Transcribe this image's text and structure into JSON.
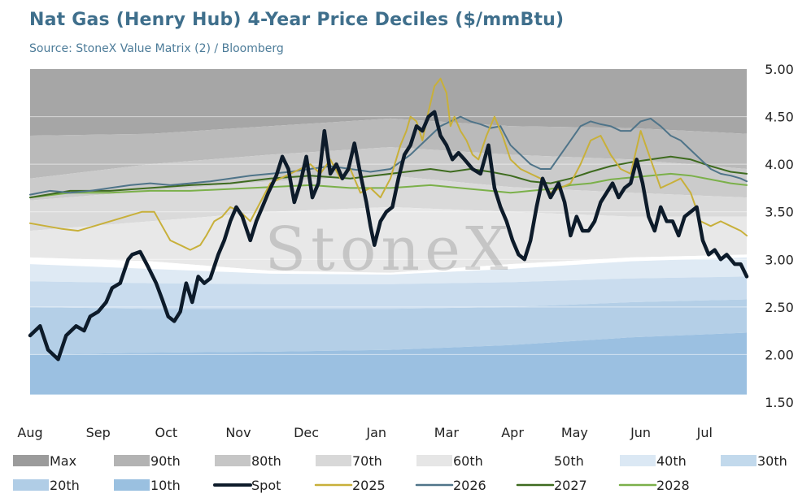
{
  "title": "Nat Gas (Henry Hub) 4-Year Price Deciles ($/mmBtu)",
  "subtitle": "Source: StoneX Value Matrix (2) / Bloomberg",
  "watermark": "StoneX",
  "chart_data": {
    "type": "area",
    "y_axis": {
      "min": 1.5,
      "max": 5.0,
      "ticks": [
        "5.00",
        "4.50",
        "4.00",
        "3.50",
        "3.00",
        "2.50",
        "2.00",
        "1.50"
      ],
      "position": "right"
    },
    "x_axis": {
      "labels": [
        "Aug",
        "Sep",
        "Oct",
        "Nov",
        "Dec",
        "Jan",
        "Mar",
        "Apr",
        "May",
        "Jun",
        "Jul"
      ],
      "label_days": [
        0,
        34,
        68,
        104,
        138,
        173,
        208,
        241,
        272,
        305,
        337
      ],
      "range_days": [
        0,
        358
      ]
    },
    "bands": {
      "day": [
        0,
        60,
        120,
        180,
        240,
        300,
        358
      ],
      "Max": [
        5.0,
        5.0,
        5.0,
        5.0,
        5.0,
        5.0,
        5.0
      ],
      "90th": [
        4.3,
        4.32,
        4.4,
        4.48,
        4.4,
        4.38,
        4.32
      ],
      "80th": [
        3.85,
        4.0,
        4.1,
        4.18,
        4.1,
        4.05,
        3.95
      ],
      "70th": [
        3.62,
        3.72,
        3.82,
        3.88,
        3.76,
        3.7,
        3.65
      ],
      "60th": [
        3.3,
        3.4,
        3.5,
        3.55,
        3.5,
        3.45,
        3.45
      ],
      "50th": [
        3.02,
        2.98,
        2.88,
        2.86,
        2.95,
        3.02,
        3.05
      ],
      "40th": [
        2.95,
        2.9,
        2.85,
        2.84,
        2.9,
        2.98,
        3.02
      ],
      "30th": [
        2.77,
        2.75,
        2.74,
        2.74,
        2.76,
        2.8,
        2.82
      ],
      "20th": [
        2.5,
        2.48,
        2.48,
        2.48,
        2.5,
        2.55,
        2.58
      ],
      "10th": [
        2.0,
        2.02,
        2.03,
        2.05,
        2.1,
        2.18,
        2.23
      ],
      "Min": [
        1.58,
        1.58,
        1.58,
        1.58,
        1.58,
        1.58,
        1.58
      ]
    },
    "series": [
      {
        "name": "Spot",
        "color": "#0d1b2a",
        "width": 4.5,
        "day": [
          0,
          5,
          9,
          14,
          18,
          23,
          27,
          30,
          34,
          38,
          41,
          45,
          49,
          51,
          55,
          59,
          63,
          66,
          69,
          72,
          75,
          78,
          81,
          84,
          87,
          90,
          94,
          97,
          100,
          103,
          106,
          110,
          113,
          116,
          119,
          123,
          126,
          129,
          132,
          135,
          138,
          141,
          144,
          147,
          150,
          153,
          156,
          159,
          162,
          165,
          168,
          170,
          172,
          175,
          178,
          181,
          184,
          187,
          190,
          193,
          196,
          199,
          202,
          205,
          208,
          211,
          214,
          217,
          221,
          225,
          229,
          232,
          235,
          238,
          241,
          244,
          247,
          250,
          253,
          256,
          260,
          264,
          267,
          270,
          273,
          276,
          279,
          282,
          285,
          288,
          291,
          294,
          297,
          300,
          303,
          306,
          309,
          312,
          315,
          318,
          321,
          324,
          327,
          330,
          333,
          336,
          339,
          342,
          345,
          348,
          352,
          355,
          358
        ],
        "y": [
          2.2,
          2.3,
          2.05,
          1.95,
          2.2,
          2.3,
          2.25,
          2.4,
          2.45,
          2.55,
          2.7,
          2.75,
          3.0,
          3.05,
          3.08,
          2.92,
          2.75,
          2.58,
          2.4,
          2.35,
          2.45,
          2.75,
          2.55,
          2.82,
          2.75,
          2.8,
          3.05,
          3.2,
          3.4,
          3.55,
          3.45,
          3.2,
          3.4,
          3.55,
          3.7,
          3.88,
          4.08,
          3.95,
          3.6,
          3.8,
          4.08,
          3.65,
          3.8,
          4.35,
          3.9,
          4.0,
          3.85,
          3.95,
          4.22,
          3.9,
          3.6,
          3.35,
          3.15,
          3.4,
          3.5,
          3.55,
          3.85,
          4.1,
          4.2,
          4.4,
          4.35,
          4.5,
          4.55,
          4.3,
          4.2,
          4.05,
          4.12,
          4.05,
          3.95,
          3.9,
          4.2,
          3.75,
          3.55,
          3.4,
          3.2,
          3.05,
          3.0,
          3.2,
          3.55,
          3.85,
          3.65,
          3.8,
          3.6,
          3.25,
          3.45,
          3.3,
          3.3,
          3.4,
          3.6,
          3.7,
          3.8,
          3.65,
          3.75,
          3.8,
          4.05,
          3.8,
          3.45,
          3.3,
          3.55,
          3.4,
          3.4,
          3.25,
          3.45,
          3.5,
          3.55,
          3.2,
          3.05,
          3.1,
          3.0,
          3.05,
          2.95,
          2.95,
          2.82
        ]
      },
      {
        "name": "2025",
        "color": "#c8b03a",
        "width": 2,
        "day": [
          0,
          8,
          16,
          24,
          32,
          40,
          48,
          56,
          62,
          66,
          70,
          75,
          80,
          85,
          88,
          92,
          96,
          100,
          105,
          110,
          115,
          120,
          125,
          130,
          135,
          140,
          145,
          150,
          155,
          160,
          165,
          170,
          175,
          180,
          185,
          188,
          190,
          193,
          196,
          199,
          202,
          205,
          208,
          210,
          212,
          215,
          218,
          221,
          224,
          228,
          232,
          236,
          240,
          245,
          250,
          255,
          260,
          265,
          270,
          275,
          280,
          285,
          290,
          295,
          300,
          305,
          310,
          315,
          320,
          325,
          330,
          335,
          340,
          345,
          350,
          355,
          358
        ],
        "y": [
          3.38,
          3.35,
          3.32,
          3.3,
          3.35,
          3.4,
          3.45,
          3.5,
          3.5,
          3.35,
          3.2,
          3.15,
          3.1,
          3.15,
          3.25,
          3.4,
          3.45,
          3.55,
          3.5,
          3.4,
          3.6,
          3.8,
          3.85,
          3.9,
          3.95,
          4.0,
          3.9,
          4.05,
          3.85,
          3.95,
          3.7,
          3.75,
          3.65,
          3.85,
          4.2,
          4.35,
          4.5,
          4.45,
          4.25,
          4.55,
          4.82,
          4.9,
          4.75,
          4.4,
          4.5,
          4.35,
          4.25,
          4.1,
          4.05,
          4.3,
          4.5,
          4.3,
          4.05,
          3.95,
          3.9,
          3.85,
          3.7,
          3.75,
          3.8,
          4.0,
          4.25,
          4.3,
          4.1,
          3.95,
          3.9,
          4.35,
          4.05,
          3.75,
          3.8,
          3.85,
          3.7,
          3.4,
          3.35,
          3.4,
          3.35,
          3.3,
          3.25
        ]
      },
      {
        "name": "2026",
        "color": "#4f7489",
        "width": 2,
        "day": [
          0,
          10,
          20,
          30,
          40,
          50,
          60,
          70,
          80,
          90,
          100,
          110,
          120,
          130,
          140,
          150,
          160,
          170,
          180,
          190,
          200,
          205,
          210,
          215,
          220,
          225,
          230,
          235,
          240,
          250,
          255,
          260,
          265,
          270,
          275,
          280,
          285,
          290,
          295,
          300,
          305,
          310,
          315,
          320,
          325,
          330,
          335,
          340,
          345,
          350,
          355,
          358
        ],
        "y": [
          3.68,
          3.72,
          3.7,
          3.72,
          3.75,
          3.78,
          3.8,
          3.78,
          3.8,
          3.82,
          3.85,
          3.88,
          3.9,
          3.92,
          3.95,
          3.98,
          3.95,
          3.92,
          3.95,
          4.1,
          4.3,
          4.4,
          4.45,
          4.5,
          4.45,
          4.42,
          4.38,
          4.4,
          4.2,
          4.0,
          3.95,
          3.95,
          4.1,
          4.25,
          4.4,
          4.45,
          4.42,
          4.4,
          4.35,
          4.35,
          4.45,
          4.48,
          4.4,
          4.3,
          4.25,
          4.15,
          4.05,
          3.95,
          3.9,
          3.88,
          3.85,
          3.82
        ]
      },
      {
        "name": "2027",
        "color": "#3e6b1f",
        "width": 2,
        "day": [
          0,
          20,
          40,
          60,
          80,
          100,
          120,
          140,
          160,
          180,
          200,
          210,
          220,
          230,
          240,
          250,
          260,
          270,
          280,
          290,
          300,
          310,
          320,
          330,
          340,
          350,
          358
        ],
        "y": [
          3.65,
          3.72,
          3.72,
          3.75,
          3.78,
          3.8,
          3.85,
          3.88,
          3.85,
          3.9,
          3.95,
          3.92,
          3.95,
          3.92,
          3.88,
          3.82,
          3.8,
          3.85,
          3.92,
          3.98,
          4.02,
          4.05,
          4.08,
          4.05,
          3.98,
          3.92,
          3.9
        ]
      },
      {
        "name": "2028",
        "color": "#7bb04a",
        "width": 2,
        "day": [
          0,
          20,
          40,
          60,
          80,
          100,
          120,
          140,
          160,
          180,
          200,
          210,
          220,
          230,
          240,
          250,
          260,
          270,
          280,
          290,
          300,
          310,
          320,
          330,
          340,
          350,
          358
        ],
        "y": [
          3.65,
          3.7,
          3.7,
          3.72,
          3.72,
          3.74,
          3.76,
          3.78,
          3.75,
          3.75,
          3.78,
          3.76,
          3.74,
          3.72,
          3.7,
          3.72,
          3.74,
          3.78,
          3.8,
          3.84,
          3.86,
          3.88,
          3.9,
          3.88,
          3.84,
          3.8,
          3.78
        ]
      }
    ],
    "legend": {
      "placement": "bottom",
      "items": [
        {
          "label": "Max",
          "kind": "swatch",
          "color": "#9b9b9b"
        },
        {
          "label": "90th",
          "kind": "swatch",
          "color": "#b3b3b3"
        },
        {
          "label": "80th",
          "kind": "swatch",
          "color": "#c6c6c6"
        },
        {
          "label": "70th",
          "kind": "swatch",
          "color": "#d8d8d8"
        },
        {
          "label": "60th",
          "kind": "swatch",
          "color": "#e6e6e6"
        },
        {
          "label": "50th",
          "kind": "swatch",
          "color": "#ffffff"
        },
        {
          "label": "40th",
          "kind": "swatch",
          "color": "#dbe8f4"
        },
        {
          "label": "30th",
          "kind": "swatch",
          "color": "#c2d9ec"
        },
        {
          "label": "20th",
          "kind": "swatch",
          "color": "#b0cde6"
        },
        {
          "label": "10th",
          "kind": "swatch",
          "color": "#9ac0e0"
        },
        {
          "label": "Spot",
          "kind": "line",
          "color": "#0d1b2a"
        },
        {
          "label": "2025",
          "kind": "line",
          "color": "#c8b03a"
        },
        {
          "label": "2026",
          "kind": "line",
          "color": "#4f7489"
        },
        {
          "label": "2027",
          "kind": "line",
          "color": "#3e6b1f"
        },
        {
          "label": "2028",
          "kind": "line",
          "color": "#7bb04a"
        }
      ]
    },
    "band_fills": {
      "Max_90": "#a6a6a6",
      "90_80": "#bababa",
      "80_70": "#cbcbcb",
      "70_60": "#dadada",
      "60_50": "#e8e8e8",
      "50_40": "#ffffff",
      "40_30": "#dfeaf4",
      "30_20": "#c9dcee",
      "20_10": "#b4cfe7",
      "10_Min": "#9bc0e1"
    }
  }
}
